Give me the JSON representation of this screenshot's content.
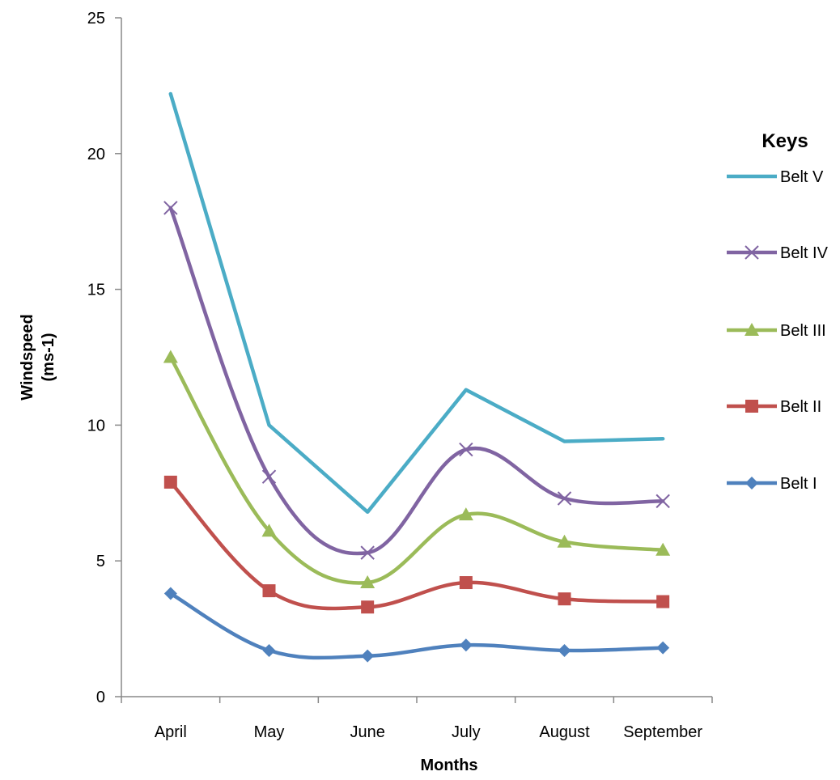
{
  "chart_data": {
    "type": "line",
    "title": "",
    "xlabel": "Months",
    "ylabel": "Windspeed (ms-1)",
    "ylabel_lines": [
      "Windspeed",
      "(ms-1)"
    ],
    "ylim": [
      0,
      25
    ],
    "yticks": [
      0,
      5,
      10,
      15,
      20,
      25
    ],
    "grid": false,
    "legend_title": "Keys",
    "legend_position": "right",
    "categories": [
      "April",
      "May",
      "June",
      "July",
      "August",
      "September"
    ],
    "series": [
      {
        "name": "Belt V",
        "color": "#4BACC6",
        "marker": "none",
        "smooth": false,
        "values": [
          22.2,
          10.0,
          6.8,
          11.3,
          9.4,
          9.5
        ]
      },
      {
        "name": "Belt IV",
        "color": "#8064A2",
        "marker": "x",
        "smooth": true,
        "values": [
          18.0,
          8.1,
          5.3,
          9.1,
          7.3,
          7.2
        ]
      },
      {
        "name": "Belt III",
        "color": "#9BBB59",
        "marker": "triangle",
        "smooth": true,
        "values": [
          12.5,
          6.1,
          4.2,
          6.7,
          5.7,
          5.4
        ]
      },
      {
        "name": "Belt II",
        "color": "#C0504D",
        "marker": "square",
        "smooth": true,
        "values": [
          7.9,
          3.9,
          3.3,
          4.2,
          3.6,
          3.5
        ]
      },
      {
        "name": "Belt I",
        "color": "#4F81BD",
        "marker": "diamond",
        "smooth": true,
        "values": [
          3.8,
          1.7,
          1.5,
          1.9,
          1.7,
          1.8
        ]
      }
    ]
  }
}
